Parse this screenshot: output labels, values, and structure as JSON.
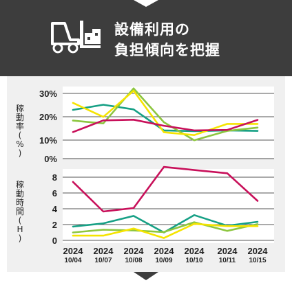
{
  "header": {
    "title_line1": "設備利用の",
    "title_line2": "負担傾向を把握",
    "icon": "forklift-icon",
    "background": "#3d3d3d"
  },
  "chart_data": [
    {
      "type": "line",
      "ylabel": "稼動率(%)",
      "yticks": [
        "30%",
        "20%",
        "10%",
        "0%"
      ],
      "ylim": [
        0,
        30
      ],
      "categories": [
        "2024 10/04",
        "2024 10/07",
        "2024 10/08",
        "2024 10/09",
        "2024 10/10",
        "2024 10/11",
        "2024 10/15"
      ],
      "grid": true,
      "series": [
        {
          "color": "#16a085",
          "values": [
            22.8,
            25.0,
            23.0,
            14.0,
            13.7,
            14.0,
            13.8
          ]
        },
        {
          "color": "#8dc63f",
          "values": [
            18.2,
            17.0,
            32.0,
            17.5,
            9.8,
            13.8,
            15.2
          ]
        },
        {
          "color": "#f5e400",
          "values": [
            25.8,
            19.8,
            31.0,
            13.2,
            12.0,
            16.8,
            16.8
          ]
        },
        {
          "color": "#c8105a",
          "values": [
            13.3,
            18.3,
            18.6,
            16.0,
            14.0,
            14.2,
            18.5
          ]
        }
      ]
    },
    {
      "type": "line",
      "ylabel": "稼動時間(H)",
      "yticks": [
        "8",
        "6",
        "4",
        "2",
        "0"
      ],
      "ylim": [
        0,
        8
      ],
      "categories": [
        "2024 10/04",
        "2024 10/07",
        "2024 10/08",
        "2024 10/09",
        "2024 10/10",
        "2024 10/11",
        "2024 10/15"
      ],
      "grid": true,
      "series": [
        {
          "color": "#16a085",
          "values": [
            1.75,
            2.15,
            3.1,
            1.0,
            3.2,
            1.85,
            2.35
          ]
        },
        {
          "color": "#8dc63f",
          "values": [
            1.0,
            1.35,
            1.25,
            1.05,
            2.3,
            1.2,
            2.05
          ]
        },
        {
          "color": "#f5e400",
          "values": [
            0.6,
            0.6,
            1.5,
            0.3,
            2.1,
            1.8,
            1.8
          ]
        },
        {
          "color": "#c8105a",
          "values": [
            7.4,
            3.65,
            4.1,
            9.3,
            8.9,
            8.5,
            5.0
          ]
        }
      ]
    }
  ]
}
